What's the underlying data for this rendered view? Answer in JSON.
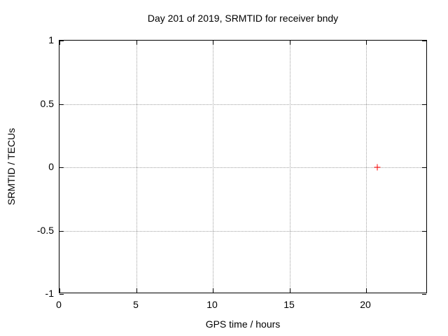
{
  "colors": {
    "background": "#ffffff",
    "axis": "#000000",
    "grid": "#a0a0a0",
    "text": "#000000",
    "marker": "#ff0000"
  },
  "chart_data": {
    "type": "scatter",
    "title": "Day 201 of 2019, SRMTID for receiver bndy",
    "xlabel": "GPS time / hours",
    "ylabel": "SRMTID / TECUs",
    "xlim": [
      0,
      24
    ],
    "ylim": [
      -1,
      1
    ],
    "x_ticks": [
      0,
      5,
      10,
      15,
      20
    ],
    "x_tick_labels": [
      "0",
      "5",
      "10",
      "15",
      "20"
    ],
    "y_ticks": [
      1,
      0.5,
      0,
      -0.5,
      -1
    ],
    "y_tick_labels": [
      "1",
      "0.5",
      "0",
      "-0.5",
      "-1"
    ],
    "grid": true,
    "grid_style": "dotted",
    "legend": "none",
    "series": [
      {
        "name": "SRMTID",
        "marker": "plus",
        "color": "#ff0000",
        "points": [
          {
            "x": 20.7,
            "y": 0.0
          }
        ]
      }
    ]
  }
}
